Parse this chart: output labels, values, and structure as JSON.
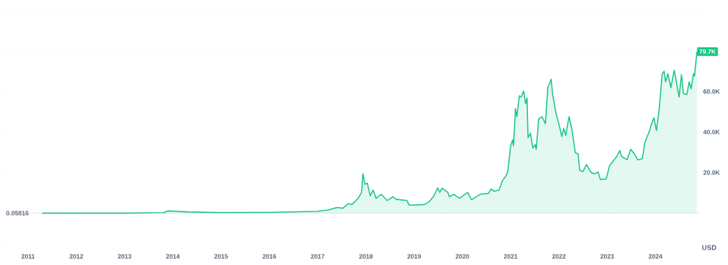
{
  "chart_data": {
    "type": "area",
    "color": "#16c784",
    "x": [
      2011.29,
      2012.5,
      2013.0,
      2013.8,
      2013.9,
      2014.3,
      2015.0,
      2016.0,
      2017.0,
      2017.23,
      2017.4,
      2017.52,
      2017.64,
      2017.71,
      2017.84,
      2017.91,
      2017.94,
      2017.98,
      2018.03,
      2018.09,
      2018.15,
      2018.21,
      2018.32,
      2018.44,
      2018.56,
      2018.63,
      2018.85,
      2018.9,
      2019.21,
      2019.31,
      2019.41,
      2019.49,
      2019.53,
      2019.58,
      2019.7,
      2019.73,
      2019.82,
      2019.94,
      2020.11,
      2020.19,
      2020.37,
      2020.54,
      2020.59,
      2020.66,
      2020.76,
      2020.83,
      2020.9,
      2020.94,
      2021.0,
      2021.04,
      2021.06,
      2021.1,
      2021.13,
      2021.18,
      2021.22,
      2021.27,
      2021.31,
      2021.34,
      2021.36,
      2021.41,
      2021.46,
      2021.51,
      2021.53,
      2021.58,
      2021.65,
      2021.72,
      2021.77,
      2021.84,
      2021.87,
      2021.94,
      2022.01,
      2022.06,
      2022.1,
      2022.14,
      2022.21,
      2022.27,
      2022.34,
      2022.4,
      2022.43,
      2022.5,
      2022.57,
      2022.67,
      2022.74,
      2022.81,
      2022.86,
      2022.98,
      2023.05,
      2023.2,
      2023.26,
      2023.3,
      2023.41,
      2023.49,
      2023.58,
      2023.63,
      2023.73,
      2023.78,
      2023.87,
      2023.92,
      2023.97,
      2024.02,
      2024.08,
      2024.14,
      2024.18,
      2024.21,
      2024.26,
      2024.32,
      2024.39,
      2024.45,
      2024.49,
      2024.54,
      2024.58,
      2024.65,
      2024.7,
      2024.74,
      2024.79,
      2024.81,
      2024.86
    ],
    "values": [
      0,
      0,
      0,
      200,
      1100,
      600,
      300,
      400,
      900,
      1600,
      2800,
      2400,
      4700,
      4200,
      7300,
      10200,
      19400,
      14200,
      14800,
      8500,
      11400,
      7300,
      9300,
      6200,
      8100,
      6800,
      6200,
      3900,
      4200,
      5600,
      8500,
      12500,
      10200,
      12300,
      10200,
      8100,
      9300,
      7300,
      10200,
      6600,
      9300,
      9700,
      11900,
      10800,
      11400,
      16000,
      18300,
      20500,
      33200,
      36100,
      33200,
      51600,
      47600,
      57900,
      57300,
      60200,
      53900,
      56800,
      37200,
      39500,
      32100,
      33800,
      31500,
      46400,
      47600,
      44100,
      61900,
      66000,
      58500,
      49300,
      43000,
      37800,
      41800,
      38400,
      47600,
      41200,
      29800,
      29200,
      21100,
      20500,
      24000,
      20000,
      19400,
      20300,
      16600,
      16900,
      23400,
      28000,
      30900,
      28000,
      26300,
      31500,
      28600,
      26300,
      26900,
      34900,
      40100,
      44100,
      47000,
      40700,
      51600,
      68800,
      70000,
      64800,
      68800,
      61900,
      70500,
      62500,
      57300,
      68300,
      59000,
      58500,
      64800,
      61400,
      68800,
      67700,
      79700
    ],
    "xlim": [
      2010.52,
      2024.91
    ],
    "xticks": [
      2011,
      2012,
      2013,
      2014,
      2015,
      2016,
      2017,
      2018,
      2019,
      2020,
      2021,
      2022,
      2023,
      2024
    ],
    "ylim": [
      -17000,
      100000
    ],
    "yticks": [
      {
        "value": 20000,
        "label": "20.0K"
      },
      {
        "value": 40000,
        "label": "40.0K"
      },
      {
        "value": 60000,
        "label": "60.0K"
      },
      {
        "value": 80000,
        "label": null
      }
    ],
    "ylabel": "USD",
    "grid": "y",
    "ref_lines": [
      {
        "axis": "y",
        "value": 0.05816,
        "label": "0.05816",
        "color": "#808a9d",
        "line_style": "dotted"
      }
    ],
    "annotations": [
      {
        "text": "79.7K",
        "x": 2024.86,
        "y": 79700
      }
    ]
  }
}
